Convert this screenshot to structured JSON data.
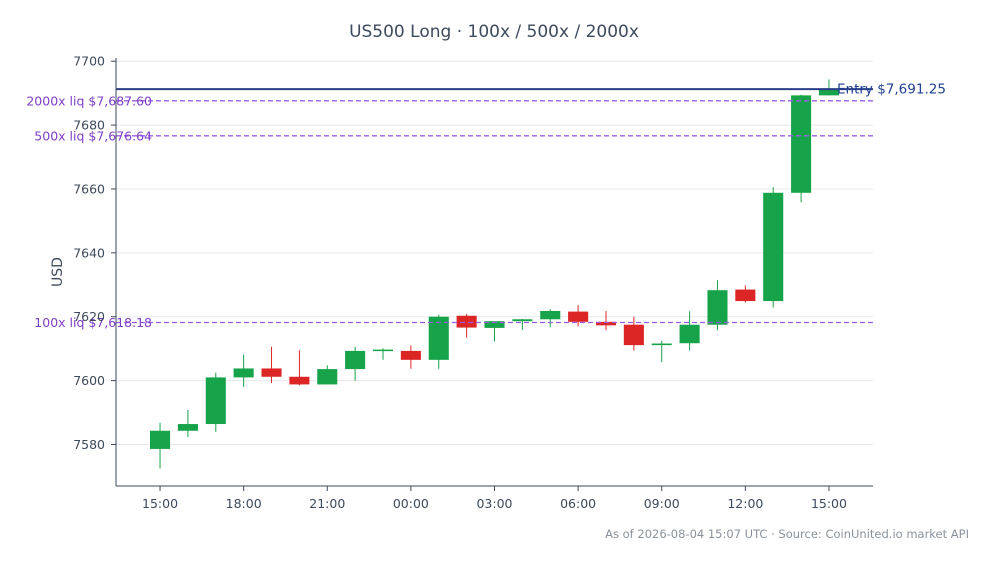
{
  "chart_data": {
    "type": "candlestick",
    "title": "US500 Long · 100x / 500x / 2000x",
    "ylabel": "USD",
    "ylim": [
      7567,
      7701
    ],
    "yticks": [
      7580,
      7600,
      7620,
      7640,
      7660,
      7680,
      7700
    ],
    "xticks": [
      {
        "label": "15:00",
        "hour": 0
      },
      {
        "label": "18:00",
        "hour": 3
      },
      {
        "label": "21:00",
        "hour": 6
      },
      {
        "label": "00:00",
        "hour": 9
      },
      {
        "label": "03:00",
        "hour": 12
      },
      {
        "label": "06:00",
        "hour": 15
      },
      {
        "label": "09:00",
        "hour": 18
      },
      {
        "label": "12:00",
        "hour": 21
      },
      {
        "label": "15:00",
        "hour": 24
      }
    ],
    "candles": [
      {
        "hour": 0,
        "open": 7578.6,
        "high": 7586.8,
        "low": 7572.5,
        "close": 7584.3
      },
      {
        "hour": 1,
        "open": 7584.3,
        "high": 7590.8,
        "low": 7582.3,
        "close": 7586.4
      },
      {
        "hour": 2,
        "open": 7586.4,
        "high": 7602.5,
        "low": 7584.0,
        "close": 7601.0
      },
      {
        "hour": 3,
        "open": 7601.0,
        "high": 7608.2,
        "low": 7598.0,
        "close": 7603.8
      },
      {
        "hour": 4,
        "open": 7603.8,
        "high": 7610.6,
        "low": 7599.2,
        "close": 7601.2
      },
      {
        "hour": 5,
        "open": 7601.2,
        "high": 7609.5,
        "low": 7598.5,
        "close": 7598.8
      },
      {
        "hour": 6,
        "open": 7598.8,
        "high": 7604.8,
        "low": 7598.8,
        "close": 7603.6
      },
      {
        "hour": 7,
        "open": 7603.6,
        "high": 7610.6,
        "low": 7600.0,
        "close": 7609.3
      },
      {
        "hour": 8,
        "open": 7609.3,
        "high": 7610.1,
        "low": 7606.5,
        "close": 7609.7
      },
      {
        "hour": 9,
        "open": 7609.3,
        "high": 7611.0,
        "low": 7603.7,
        "close": 7606.5
      },
      {
        "hour": 10,
        "open": 7606.5,
        "high": 7620.6,
        "low": 7603.7,
        "close": 7620.0
      },
      {
        "hour": 11,
        "open": 7620.3,
        "high": 7620.8,
        "low": 7613.4,
        "close": 7616.6
      },
      {
        "hour": 12,
        "open": 7616.5,
        "high": 7618.5,
        "low": 7612.2,
        "close": 7618.6
      },
      {
        "hour": 13,
        "open": 7618.6,
        "high": 7619.3,
        "low": 7615.9,
        "close": 7619.2
      },
      {
        "hour": 14,
        "open": 7619.2,
        "high": 7622.3,
        "low": 7616.7,
        "close": 7621.8
      },
      {
        "hour": 15,
        "open": 7621.6,
        "high": 7623.6,
        "low": 7617.0,
        "close": 7618.4
      },
      {
        "hour": 16,
        "open": 7618.4,
        "high": 7621.8,
        "low": 7615.8,
        "close": 7617.3
      },
      {
        "hour": 17,
        "open": 7617.5,
        "high": 7620.0,
        "low": 7609.4,
        "close": 7611.1
      },
      {
        "hour": 18,
        "open": 7611.1,
        "high": 7612.5,
        "low": 7605.8,
        "close": 7611.6
      },
      {
        "hour": 19,
        "open": 7611.7,
        "high": 7621.7,
        "low": 7609.5,
        "close": 7617.5
      },
      {
        "hour": 20,
        "open": 7617.5,
        "high": 7631.4,
        "low": 7615.8,
        "close": 7628.3
      },
      {
        "hour": 21,
        "open": 7628.5,
        "high": 7629.8,
        "low": 7624.5,
        "close": 7624.9
      },
      {
        "hour": 22,
        "open": 7624.9,
        "high": 7660.6,
        "low": 7622.9,
        "close": 7658.8
      },
      {
        "hour": 23,
        "open": 7658.8,
        "high": 7689.5,
        "low": 7655.8,
        "close": 7689.3
      },
      {
        "hour": 24,
        "open": 7689.3,
        "high": 7694.3,
        "low": 7689.3,
        "close": 7691.2
      }
    ],
    "entry": {
      "price": 7691.25,
      "label": "Entry $7,691.25",
      "color": "#2b3f88"
    },
    "liquidations": [
      {
        "price": 7687.6,
        "label": "2000x liq $7,687.60"
      },
      {
        "price": 7676.64,
        "label": "500x liq $7,676.64"
      },
      {
        "price": 7618.18,
        "label": "100x liq $7,618.18"
      }
    ],
    "colors": {
      "up": "#16a34a",
      "down": "#dc2626",
      "liq": "#9b5de5",
      "axis": "#3d4a5c",
      "grid": "#e6e8eb"
    },
    "grid": true,
    "footer": "As of 2026-08-04 15:07 UTC · Source: CoinUnited.io market API"
  }
}
